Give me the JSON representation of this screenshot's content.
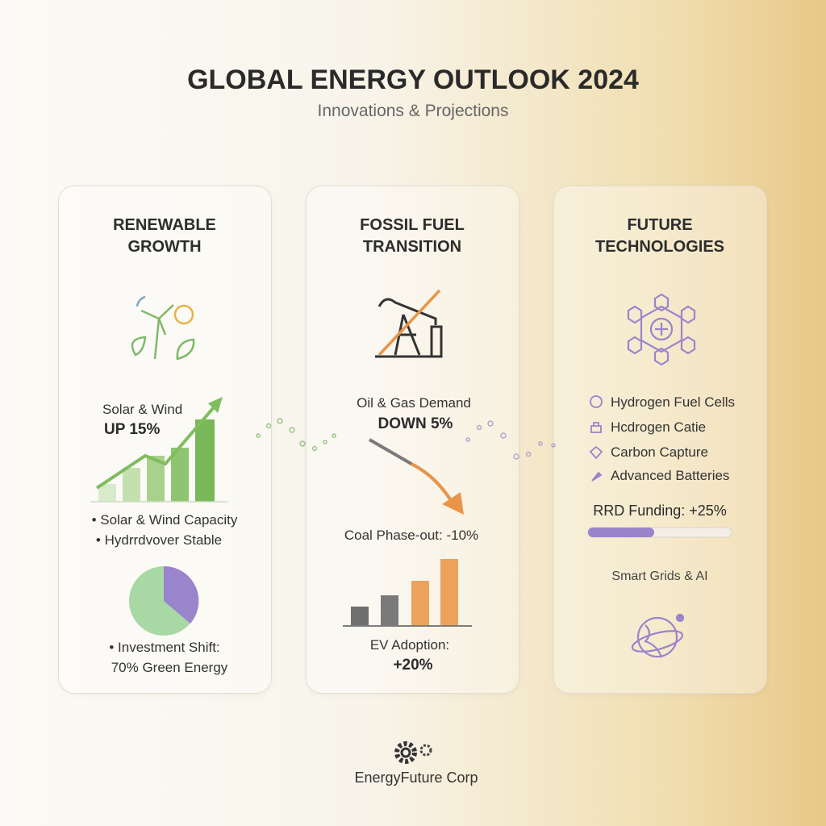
{
  "header": {
    "title": "GLOBAL ENERGY OUTLOOK 2024",
    "subtitle": "Innovations & Projections"
  },
  "panels": [
    {
      "title_lines": [
        "RENEWABLE",
        "GROWTH"
      ],
      "stat_label": "Solar & Wind",
      "stat_value": "UP 15%",
      "bullets": [
        "Solar & Wind Capacity",
        "Hydrrdvover Stable"
      ],
      "footnote_lines": [
        "Investment Shift:",
        "70% Green Energy"
      ]
    },
    {
      "title_lines": [
        "FOSSIL FUEL",
        "TRANSITION"
      ],
      "stat_label": "Oil & Gas Demand",
      "stat_value": "DOWN 5%",
      "note": "Coal Phase-out: -10%",
      "footnote_lines": [
        "EV Adoption:",
        "+20%"
      ]
    },
    {
      "title_lines": [
        "FUTURE",
        "TECHNOLOGIES"
      ],
      "items": [
        "Hydrogen Fuel Cells",
        "Hcdrogen Catie",
        "Carbon Capture",
        "Advanced Batteries"
      ],
      "funding": "RRD Funding: +25%",
      "note": "Smart Grids & AI"
    }
  ],
  "footer": {
    "company": "EnergyFuture Corp"
  }
}
